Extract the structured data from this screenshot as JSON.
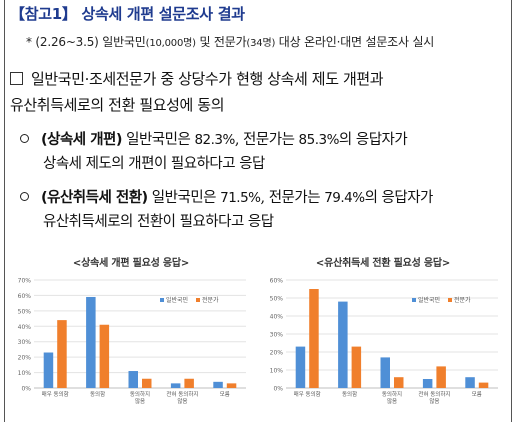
{
  "doc": {
    "title": "【참고1】 상속세 개편 설문조사 결과",
    "note": {
      "prefix": "* (2.26~3.5) 일반국민",
      "general_count": "(10,000명)",
      "mid": " 및 전문가",
      "expert_count": "(34명)",
      "suffix": " 대상 온라인·대면 설문조사 실시"
    },
    "main_item": {
      "line1": "일반국민·조세전문가 중 상당수가 현행 상속세 제도 개편과",
      "line2": "유산취득세로의 전환 필요성에 동의"
    },
    "bullets": [
      {
        "heading": "(상속세 개편)",
        "t1": " 일반국민은 ",
        "v1": "82.3%",
        "t2": ", 전문가는 ",
        "v2": "85.3%",
        "t3": "의 응답자가",
        "line2": "상속세 제도의 개편이 필요하다고 응답"
      },
      {
        "heading": "(유산취득세 전환)",
        "t1": " 일반국민은 ",
        "v1": "71.5%",
        "t2": ", 전문가는 ",
        "v2": "79.4%",
        "t3": "의 응답자가",
        "line2": "유산취득세로의 전환이 필요하다고 응답"
      }
    ]
  },
  "colors": {
    "general": "#4f8fd6",
    "expert": "#f07f2c",
    "title": "#1f3b8f"
  },
  "chart_data": [
    {
      "type": "bar",
      "title": "<상속세 개편 필요성 응답>",
      "categories": [
        "매우 동의함",
        "동의함",
        "동의하지 않음",
        "전혀 동의하지 않음",
        "모름"
      ],
      "ylim": [
        0,
        70
      ],
      "yticks": [
        "0%",
        "10%",
        "20%",
        "30%",
        "40%",
        "50%",
        "60%",
        "70%"
      ],
      "grid": true,
      "legend_position": "top-right",
      "series": [
        {
          "name": "일반국민",
          "values": [
            23,
            59,
            11,
            3,
            4
          ]
        },
        {
          "name": "전문가",
          "values": [
            44,
            41,
            6,
            6,
            3
          ]
        }
      ]
    },
    {
      "type": "bar",
      "title": "<유산취득세 전환 필요성 응답>",
      "categories": [
        "매우 동의함",
        "동의함",
        "동의하지 않음",
        "전혀 동의하지 않음",
        "모름"
      ],
      "ylim": [
        0,
        60
      ],
      "yticks": [
        "0%",
        "10%",
        "20%",
        "30%",
        "40%",
        "50%",
        "60%"
      ],
      "grid": true,
      "legend_position": "top-right",
      "series": [
        {
          "name": "일반국민",
          "values": [
            23,
            48,
            17,
            5,
            6
          ]
        },
        {
          "name": "전문가",
          "values": [
            55,
            23,
            6,
            12,
            3
          ]
        }
      ]
    }
  ]
}
